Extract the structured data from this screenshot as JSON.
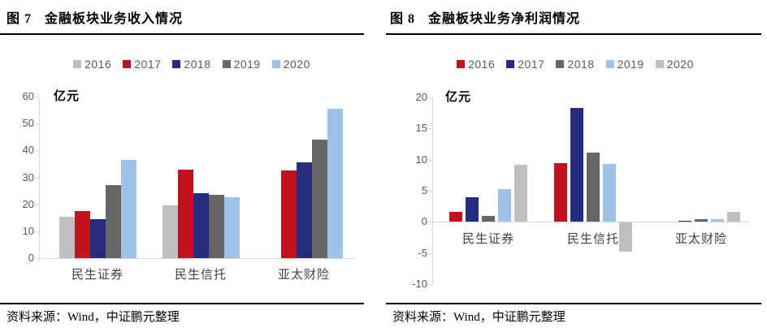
{
  "panels": [
    {
      "figure_no": "图 7",
      "title": "金融板块业务收入情况",
      "source": "资料来源：Wind，中证鹏元整理"
    },
    {
      "figure_no": "图 8",
      "title": "金融板块业务净利润情况",
      "source": "资料来源：Wind，中证鹏元整理"
    }
  ],
  "colors": {
    "red": "#c1121f",
    "navy": "#232c7f",
    "dark_gray": "#666666",
    "light_blue": "#9dc3e6",
    "light_gray": "#bfbfbf",
    "axis": "#d9d9d9",
    "tick_text": "#595959",
    "category_text": "#404040"
  },
  "chart_data": [
    {
      "type": "bar",
      "title": "图 7 金融板块业务收入情况",
      "unit_label": "亿元",
      "categories": [
        "民生证券",
        "民生信托",
        "亚太财险"
      ],
      "series": [
        {
          "name": "2016",
          "color": "#bfbfbf",
          "values": [
            15.5,
            19.5,
            0
          ]
        },
        {
          "name": "2017",
          "color": "#c1121f",
          "values": [
            17.5,
            33.0,
            32.5
          ]
        },
        {
          "name": "2018",
          "color": "#232c7f",
          "values": [
            14.5,
            24.0,
            35.5
          ]
        },
        {
          "name": "2019",
          "color": "#666666",
          "values": [
            27.0,
            23.5,
            44.0
          ]
        },
        {
          "name": "2020",
          "color": "#9dc3e6",
          "values": [
            36.5,
            22.5,
            55.5
          ]
        }
      ],
      "ylim": [
        0,
        60
      ],
      "yticks": [
        0,
        10,
        20,
        30,
        40,
        50,
        60
      ],
      "grid": false,
      "legend_position": "top"
    },
    {
      "type": "bar",
      "title": "图 8 金融板块业务净利润情况",
      "unit_label": "亿元",
      "categories": [
        "民生证券",
        "民生信托",
        "亚太财险"
      ],
      "series": [
        {
          "name": "2016",
          "color": "#c1121f",
          "values": [
            1.6,
            9.5,
            0
          ]
        },
        {
          "name": "2017",
          "color": "#232c7f",
          "values": [
            3.9,
            18.3,
            0.15
          ]
        },
        {
          "name": "2018",
          "color": "#666666",
          "values": [
            0.9,
            11.1,
            0.4
          ]
        },
        {
          "name": "2019",
          "color": "#9dc3e6",
          "values": [
            5.3,
            9.3,
            0.45
          ]
        },
        {
          "name": "2020",
          "color": "#bfbfbf",
          "values": [
            9.2,
            -4.6,
            1.6
          ]
        }
      ],
      "ylim": [
        -10,
        20
      ],
      "yticks": [
        -10,
        -5,
        0,
        5,
        10,
        15,
        20
      ],
      "grid": false,
      "legend_position": "top"
    }
  ]
}
